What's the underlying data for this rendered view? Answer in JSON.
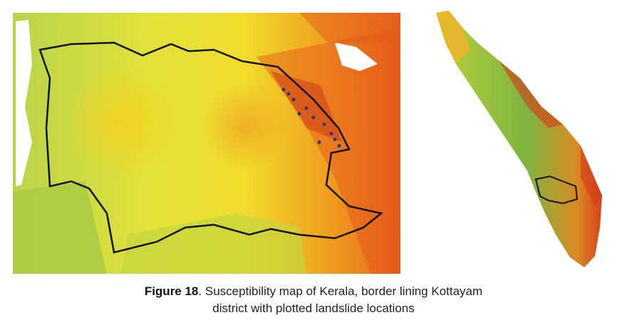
{
  "figure": {
    "label": "Figure 18",
    "caption_lines": [
      ". Susceptibility map of Kerala, border lining Kottayam",
      "district with plotted landslide locations"
    ]
  }
}
